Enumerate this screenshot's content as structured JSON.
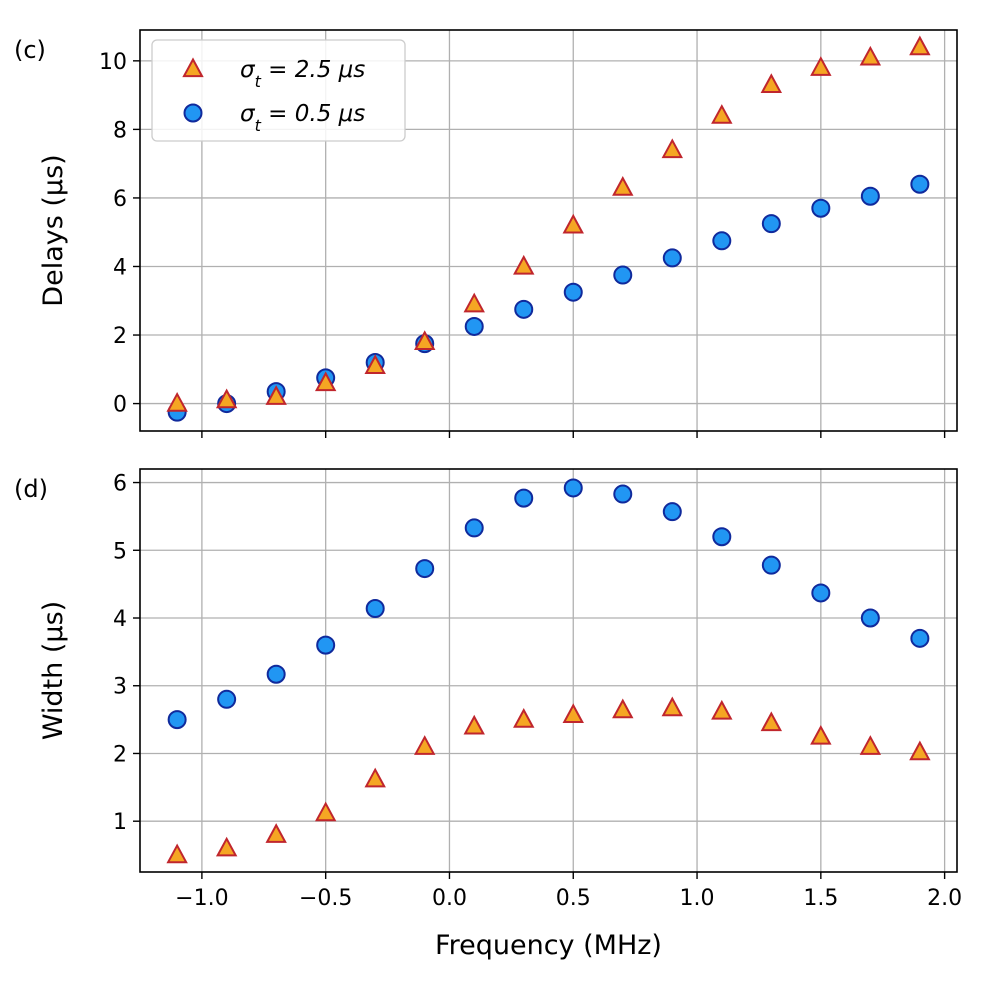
{
  "colors": {
    "triangle_fill": "#f5a623",
    "triangle_edge": "#c0262d",
    "circle_fill": "#2196f3",
    "circle_edge": "#102a9c",
    "grid": "#b0b0b0",
    "axes": "#000000"
  },
  "chart_data": [
    {
      "type": "scatter",
      "panel_label": "(c)",
      "ylabel": "Delays (μs)",
      "xlabel": "",
      "xlim": [
        -1.25,
        2.05
      ],
      "ylim": [
        -0.8,
        10.9
      ],
      "yticks": [
        0,
        2,
        4,
        6,
        8,
        10
      ],
      "yticklabels": [
        "0",
        "2",
        "4",
        "6",
        "8",
        "10"
      ],
      "xticks": [
        -1.0,
        -0.5,
        0.0,
        0.5,
        1.0,
        1.5,
        2.0
      ],
      "xticklabels": [],
      "grid": true,
      "legend": {
        "placement": "top-left",
        "entries": [
          {
            "prefix": "σ",
            "sub": "t",
            "suffix": " = 2.5 μs",
            "marker": "triangle"
          },
          {
            "prefix": "σ",
            "sub": "t",
            "suffix": " = 0.5 μs",
            "marker": "circle"
          }
        ]
      },
      "series": [
        {
          "marker": "triangle",
          "x": [
            -1.1,
            -0.9,
            -0.7,
            -0.5,
            -0.3,
            -0.1,
            0.1,
            0.3,
            0.5,
            0.7,
            0.9,
            1.1,
            1.3,
            1.5,
            1.7,
            1.9
          ],
          "y": [
            0.0,
            0.1,
            0.2,
            0.6,
            1.1,
            1.8,
            2.9,
            4.0,
            5.2,
            6.3,
            7.4,
            8.4,
            9.3,
            9.8,
            10.1,
            10.4
          ]
        },
        {
          "marker": "circle",
          "x": [
            -1.1,
            -0.9,
            -0.7,
            -0.5,
            -0.3,
            -0.1,
            0.1,
            0.3,
            0.5,
            0.7,
            0.9,
            1.1,
            1.3,
            1.5,
            1.7,
            1.9
          ],
          "y": [
            -0.25,
            0.0,
            0.35,
            0.75,
            1.2,
            1.75,
            2.25,
            2.75,
            3.25,
            3.75,
            4.25,
            4.75,
            5.25,
            5.7,
            6.05,
            6.4
          ]
        }
      ]
    },
    {
      "type": "scatter",
      "panel_label": "(d)",
      "ylabel": "Width (μs)",
      "xlabel": "Frequency (MHz)",
      "xlim": [
        -1.25,
        2.05
      ],
      "ylim": [
        0.25,
        6.2
      ],
      "yticks": [
        1,
        2,
        3,
        4,
        5,
        6
      ],
      "yticklabels": [
        "1",
        "2",
        "3",
        "4",
        "5",
        "6"
      ],
      "xticks": [
        -1.0,
        -0.5,
        0.0,
        0.5,
        1.0,
        1.5,
        2.0
      ],
      "xticklabels": [
        "−1.0",
        "−0.5",
        "0.0",
        "0.5",
        "1.0",
        "1.5",
        "2.0"
      ],
      "grid": true,
      "series": [
        {
          "marker": "triangle",
          "x": [
            -1.1,
            -0.9,
            -0.7,
            -0.5,
            -0.3,
            -0.1,
            0.1,
            0.3,
            0.5,
            0.7,
            0.9,
            1.1,
            1.3,
            1.5,
            1.7,
            1.9
          ],
          "y": [
            0.5,
            0.6,
            0.8,
            1.12,
            1.62,
            2.1,
            2.4,
            2.5,
            2.57,
            2.64,
            2.67,
            2.62,
            2.45,
            2.25,
            2.1,
            2.02
          ]
        },
        {
          "marker": "circle",
          "x": [
            -1.1,
            -0.9,
            -0.7,
            -0.5,
            -0.3,
            -0.1,
            0.1,
            0.3,
            0.5,
            0.7,
            0.9,
            1.1,
            1.3,
            1.5,
            1.7,
            1.9
          ],
          "y": [
            2.5,
            2.8,
            3.17,
            3.6,
            4.14,
            4.73,
            5.33,
            5.77,
            5.92,
            5.83,
            5.57,
            5.2,
            4.78,
            4.37,
            4.0,
            3.7
          ]
        }
      ]
    }
  ]
}
